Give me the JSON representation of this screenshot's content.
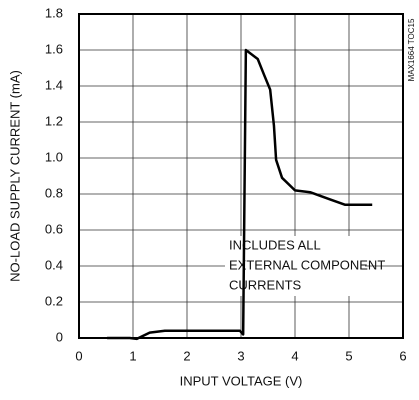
{
  "chart_data": {
    "type": "line",
    "x_label": "INPUT VOLTAGE (V)",
    "y_label": "NO-LOAD SUPPLY CURRENT (mA)",
    "side_label": "MAX1664 TOC15",
    "annotation": [
      "INCLUDES ALL",
      "EXTERNAL COMPONENT",
      "CURRENTS"
    ],
    "x": [
      0.52,
      0.94,
      1.07,
      1.31,
      1.59,
      2.43,
      2.98,
      3.04,
      3.09,
      3.31,
      3.43,
      3.54,
      3.61,
      3.65,
      3.76,
      4.0,
      4.28,
      4.65,
      4.93,
      5.2,
      5.43
    ],
    "series": [
      {
        "color": "#000000",
        "values": [
          0,
          0,
          -0.005,
          0.03,
          0.04,
          0.04,
          0.04,
          0.02,
          1.6,
          1.55,
          1.46,
          1.38,
          1.18,
          0.99,
          0.89,
          0.82,
          0.81,
          0.77,
          0.74,
          0.74,
          0.74
        ]
      }
    ],
    "xlim": [
      0,
      6
    ],
    "xticks": [
      0,
      1,
      2,
      3,
      4,
      5,
      6
    ],
    "ylim": [
      0,
      1.8
    ],
    "yticks": [
      0,
      0.2,
      0.4,
      0.6,
      0.8,
      {
        "value": 1,
        "label": "1.0"
      },
      1.2,
      1.4,
      1.6,
      1.8
    ],
    "grid": true
  }
}
